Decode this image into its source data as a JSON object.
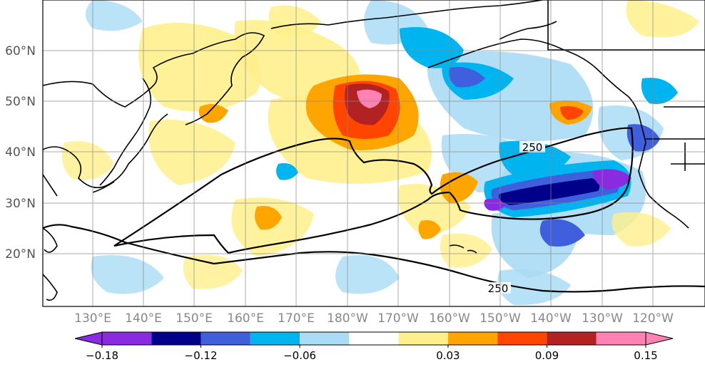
{
  "map": {
    "lat_labels": [
      "60°N",
      "50°N",
      "40°N",
      "30°N",
      "20°N"
    ],
    "lon_labels": [
      "130°E",
      "140°E",
      "150°E",
      "160°E",
      "170°E",
      "180°W",
      "170°W",
      "160°W",
      "150°W",
      "140°W",
      "130°W",
      "120°W"
    ],
    "contour_labels": [
      "250",
      "250"
    ],
    "lat_label_color": "#555555",
    "lon_label_color": "#888888"
  },
  "colorbar": {
    "tick_labels": [
      "−0.18",
      "−0.12",
      "−0.06",
      "0.03",
      "0.09",
      "0.15"
    ],
    "colors": [
      "#8a2be2",
      "#00008b",
      "#3f5fdc",
      "#00b4f0",
      "#aadcf5",
      "#ffffff",
      "#fff08c",
      "#ffa500",
      "#ff4500",
      "#b22222",
      "#ff82b4"
    ]
  },
  "icons": {
    "coastline": "coastline-icon",
    "colorbar_arrow_left": "arrow-left-icon",
    "colorbar_arrow_right": "arrow-right-icon"
  }
}
